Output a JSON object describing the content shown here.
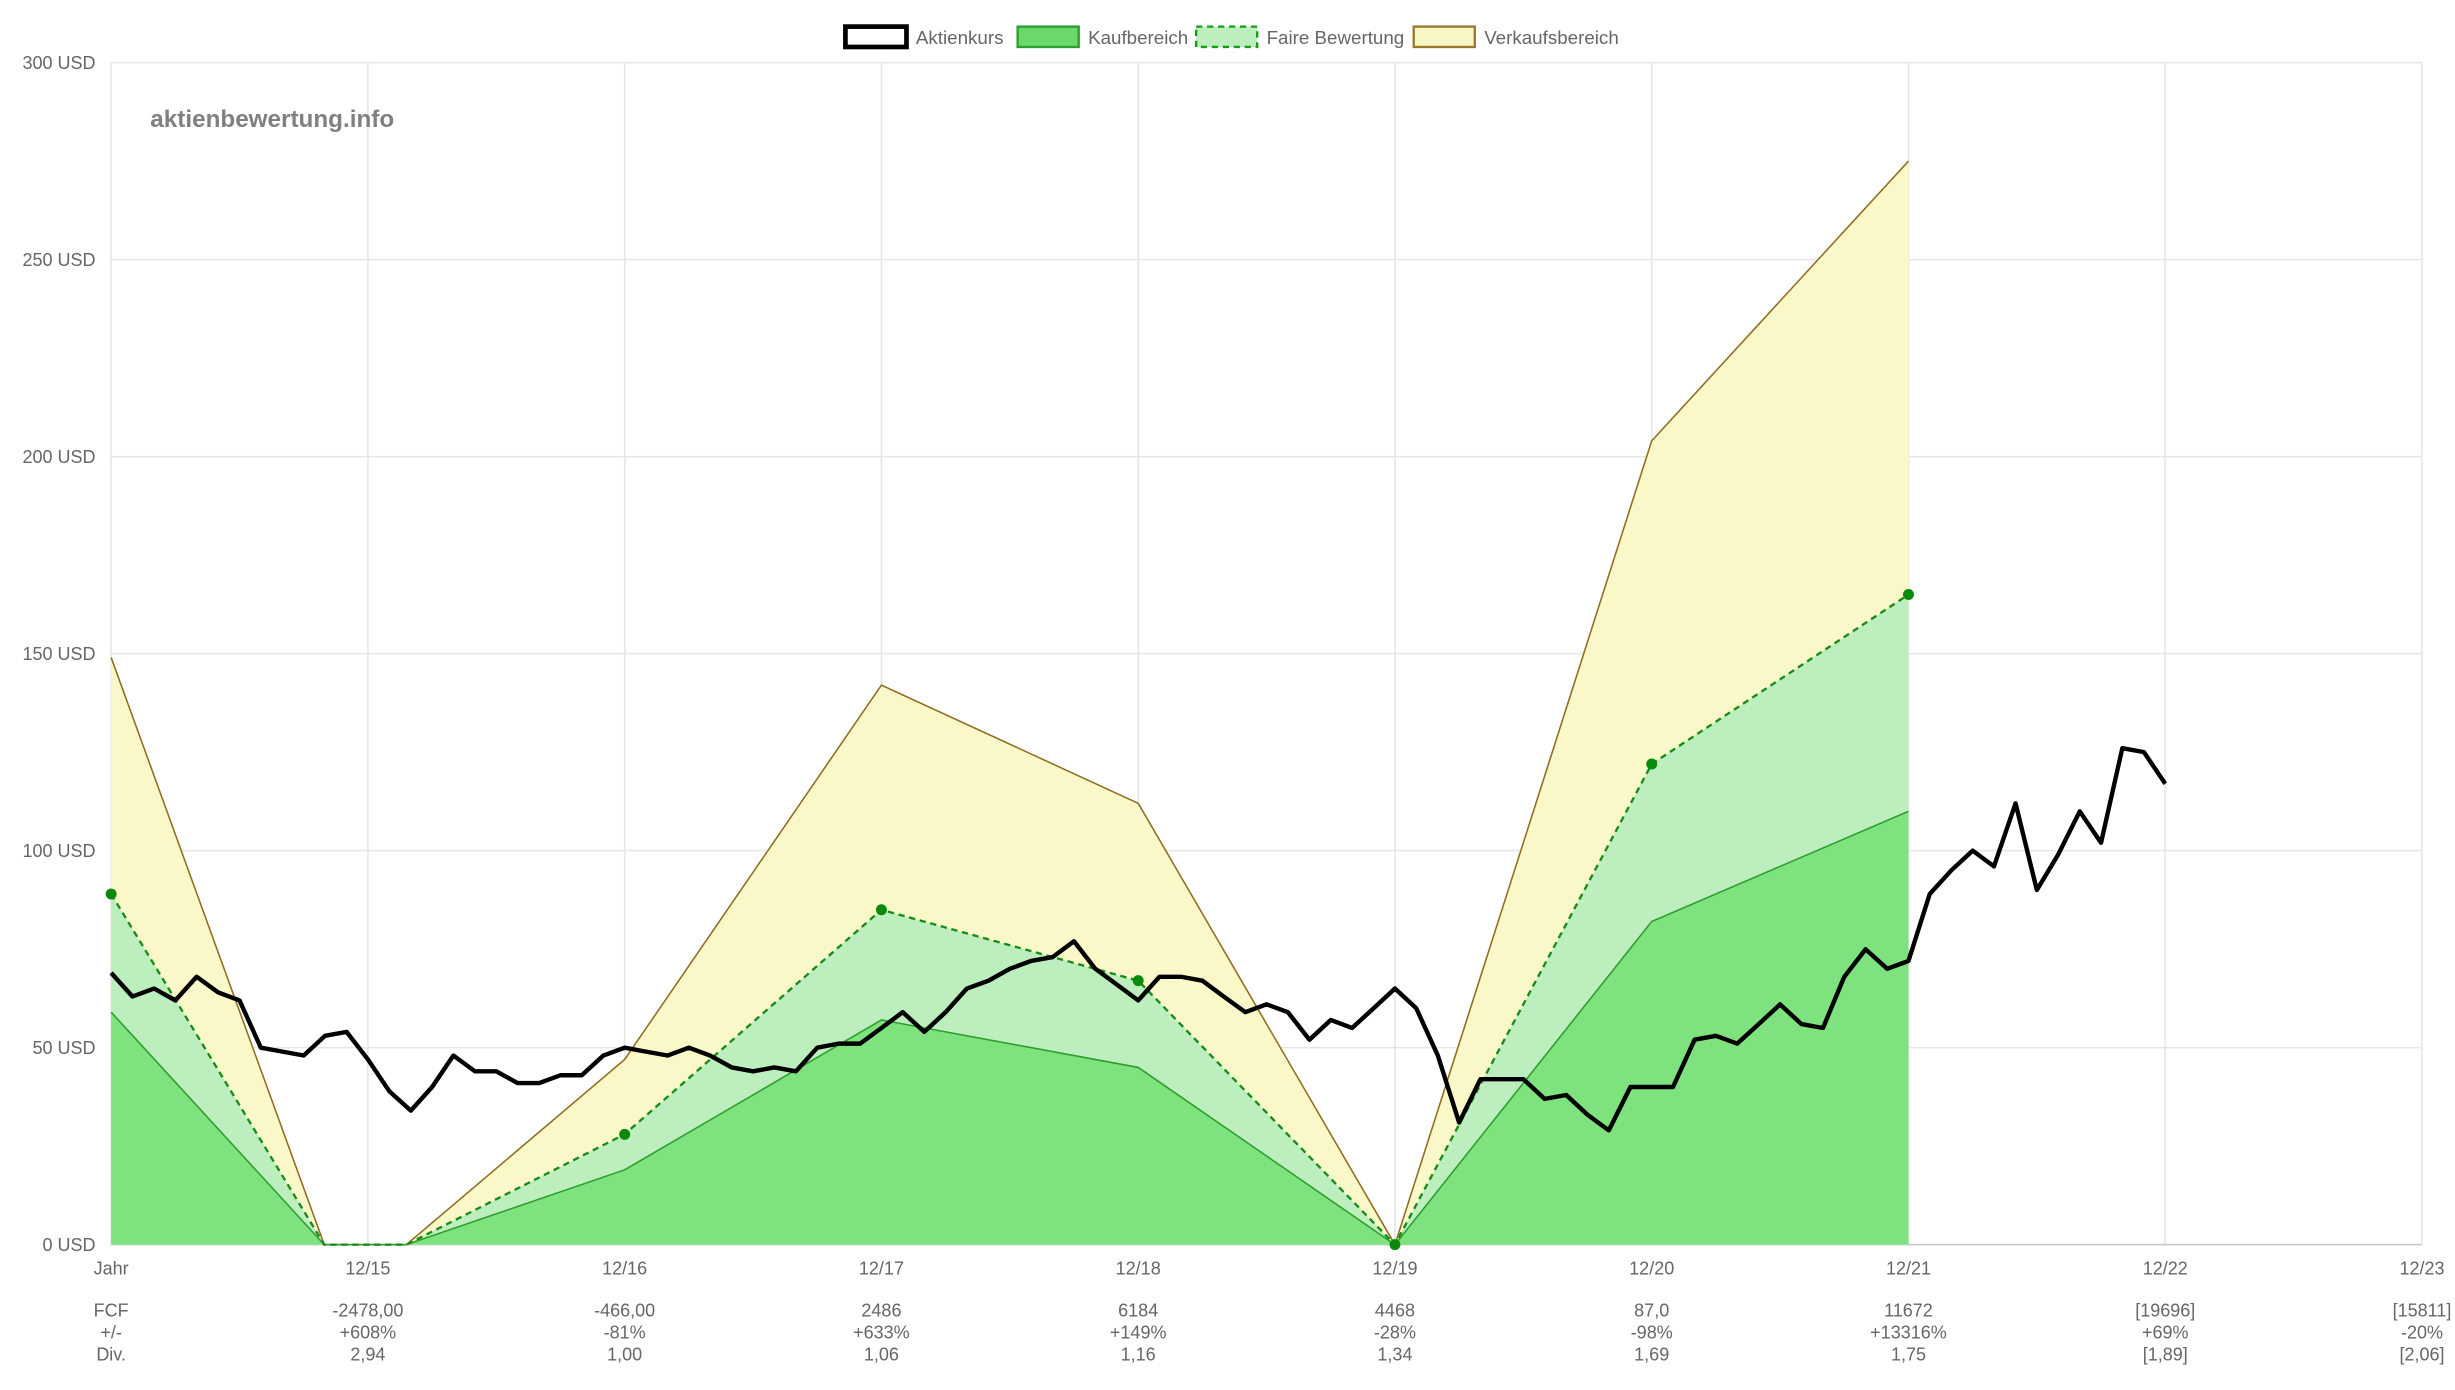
{
  "watermark": "aktienbewertung.info",
  "legend": [
    {
      "label": "Aktienkurs",
      "fill": "#ffffff",
      "stroke": "#000000",
      "dash": false
    },
    {
      "label": "Kaufbereich",
      "fill": "#6cd86c",
      "stroke": "#2e9e2e",
      "dash": false
    },
    {
      "label": "Faire Bewertung",
      "fill": "#bdeebd",
      "stroke": "#1a9a1a",
      "dash": true
    },
    {
      "label": "Verkaufsbereich",
      "fill": "#faf7c6",
      "stroke": "#9a7a2a",
      "dash": false
    }
  ],
  "colors": {
    "price": "#000000",
    "buy_fill": "#7ee27e",
    "buy_line": "#2e9e2e",
    "fair_fill": "#bdeebd",
    "fair_line": "#1a8a1a",
    "sell_fill": "#faf8c8",
    "sell_line": "#8f6e22",
    "grid": "#e6e6e6"
  },
  "chart_data": {
    "type": "area",
    "title": "",
    "ylim": [
      0,
      300
    ],
    "y_ticks": [
      {
        "value": 0,
        "label": "0 USD"
      },
      {
        "value": 50,
        "label": "50 USD"
      },
      {
        "value": 100,
        "label": "100 USD"
      },
      {
        "value": 150,
        "label": "150 USD"
      },
      {
        "value": 200,
        "label": "200 USD"
      },
      {
        "value": 250,
        "label": "250 USD"
      },
      {
        "value": 300,
        "label": "300 USD"
      }
    ],
    "x_ticks": [
      "Jahr",
      "12/15",
      "12/16",
      "12/17",
      "12/18",
      "12/19",
      "12/20",
      "12/21",
      "12/22",
      "12/23"
    ],
    "grid": true,
    "legend_position": "top-center",
    "series": [
      {
        "name": "Verkaufsbereich",
        "points": [
          [
            0,
            149
          ],
          [
            0.83,
            0
          ],
          [
            1.15,
            0
          ],
          [
            2,
            47
          ],
          [
            3,
            142
          ],
          [
            4,
            112
          ],
          [
            5,
            0
          ],
          [
            6,
            204
          ],
          [
            7,
            275
          ]
        ]
      },
      {
        "name": "Faire Bewertung",
        "points": [
          [
            0,
            89
          ],
          [
            0.83,
            0
          ],
          [
            1.15,
            0
          ],
          [
            2,
            28
          ],
          [
            3,
            85
          ],
          [
            4,
            67
          ],
          [
            5,
            0
          ],
          [
            6,
            122
          ],
          [
            7,
            165
          ]
        ],
        "markers": [
          [
            0,
            89
          ],
          [
            2,
            28
          ],
          [
            3,
            85
          ],
          [
            4,
            67
          ],
          [
            5,
            0
          ],
          [
            6,
            122
          ],
          [
            7,
            165
          ]
        ]
      },
      {
        "name": "Kaufbereich",
        "points": [
          [
            0,
            59
          ],
          [
            0.83,
            0
          ],
          [
            1.15,
            0
          ],
          [
            2,
            19
          ],
          [
            3,
            57
          ],
          [
            4,
            45
          ],
          [
            5,
            0
          ],
          [
            6,
            82
          ],
          [
            7,
            110
          ]
        ]
      },
      {
        "name": "Aktienkurs",
        "points": [
          [
            0.0,
            69
          ],
          [
            0.083,
            63
          ],
          [
            0.167,
            65
          ],
          [
            0.25,
            62
          ],
          [
            0.333,
            68
          ],
          [
            0.417,
            64
          ],
          [
            0.5,
            62
          ],
          [
            0.583,
            50
          ],
          [
            0.667,
            49
          ],
          [
            0.75,
            48
          ],
          [
            0.833,
            53
          ],
          [
            0.917,
            54
          ],
          [
            1.0,
            47
          ],
          [
            1.083,
            39
          ],
          [
            1.167,
            34
          ],
          [
            1.25,
            40
          ],
          [
            1.333,
            48
          ],
          [
            1.417,
            44
          ],
          [
            1.5,
            44
          ],
          [
            1.583,
            41
          ],
          [
            1.667,
            41
          ],
          [
            1.75,
            43
          ],
          [
            1.833,
            43
          ],
          [
            1.917,
            48
          ],
          [
            2.0,
            50
          ],
          [
            2.083,
            49
          ],
          [
            2.167,
            48
          ],
          [
            2.25,
            50
          ],
          [
            2.333,
            48
          ],
          [
            2.417,
            45
          ],
          [
            2.5,
            44
          ],
          [
            2.583,
            45
          ],
          [
            2.667,
            44
          ],
          [
            2.75,
            50
          ],
          [
            2.833,
            51
          ],
          [
            2.917,
            51
          ],
          [
            3.0,
            55
          ],
          [
            3.083,
            59
          ],
          [
            3.167,
            54
          ],
          [
            3.25,
            59
          ],
          [
            3.333,
            65
          ],
          [
            3.417,
            67
          ],
          [
            3.5,
            70
          ],
          [
            3.583,
            72
          ],
          [
            3.667,
            73
          ],
          [
            3.75,
            77
          ],
          [
            3.833,
            70
          ],
          [
            3.917,
            66
          ],
          [
            4.0,
            62
          ],
          [
            4.083,
            68
          ],
          [
            4.167,
            68
          ],
          [
            4.25,
            67
          ],
          [
            4.333,
            63
          ],
          [
            4.417,
            59
          ],
          [
            4.5,
            61
          ],
          [
            4.583,
            59
          ],
          [
            4.667,
            52
          ],
          [
            4.75,
            57
          ],
          [
            4.833,
            55
          ],
          [
            4.917,
            60
          ],
          [
            5.0,
            65
          ],
          [
            5.083,
            60
          ],
          [
            5.167,
            48
          ],
          [
            5.25,
            31
          ],
          [
            5.333,
            42
          ],
          [
            5.417,
            42
          ],
          [
            5.5,
            42
          ],
          [
            5.583,
            37
          ],
          [
            5.667,
            38
          ],
          [
            5.75,
            33
          ],
          [
            5.833,
            29
          ],
          [
            5.917,
            40
          ],
          [
            6.0,
            40
          ],
          [
            6.083,
            40
          ],
          [
            6.167,
            52
          ],
          [
            6.25,
            53
          ],
          [
            6.333,
            51
          ],
          [
            6.417,
            56
          ],
          [
            6.5,
            61
          ],
          [
            6.583,
            56
          ],
          [
            6.667,
            55
          ],
          [
            6.75,
            68
          ],
          [
            6.833,
            75
          ],
          [
            6.917,
            70
          ],
          [
            7.0,
            72
          ],
          [
            7.083,
            89
          ],
          [
            7.167,
            95
          ],
          [
            7.25,
            100
          ],
          [
            7.333,
            96
          ],
          [
            7.417,
            112
          ],
          [
            7.5,
            90
          ],
          [
            7.583,
            99
          ],
          [
            7.667,
            110
          ],
          [
            7.75,
            102
          ],
          [
            7.833,
            126
          ],
          [
            7.917,
            125
          ],
          [
            8.0,
            117
          ]
        ]
      }
    ],
    "table": {
      "rows": [
        {
          "label": "FCF",
          "values": [
            "-2478,00",
            "-466,00",
            "2486",
            "6184",
            "4468",
            "87,0",
            "11672",
            "[19696]",
            "[15811]"
          ]
        },
        {
          "label": "+/-",
          "values": [
            "+608%",
            "-81%",
            "+633%",
            "+149%",
            "-28%",
            "-98%",
            "+13316%",
            "+69%",
            "-20%"
          ]
        },
        {
          "label": "Div.",
          "values": [
            "2,94",
            "1,00",
            "1,06",
            "1,16",
            "1,34",
            "1,69",
            "1,75",
            "[1,89]",
            "[2,06]"
          ]
        }
      ]
    }
  }
}
